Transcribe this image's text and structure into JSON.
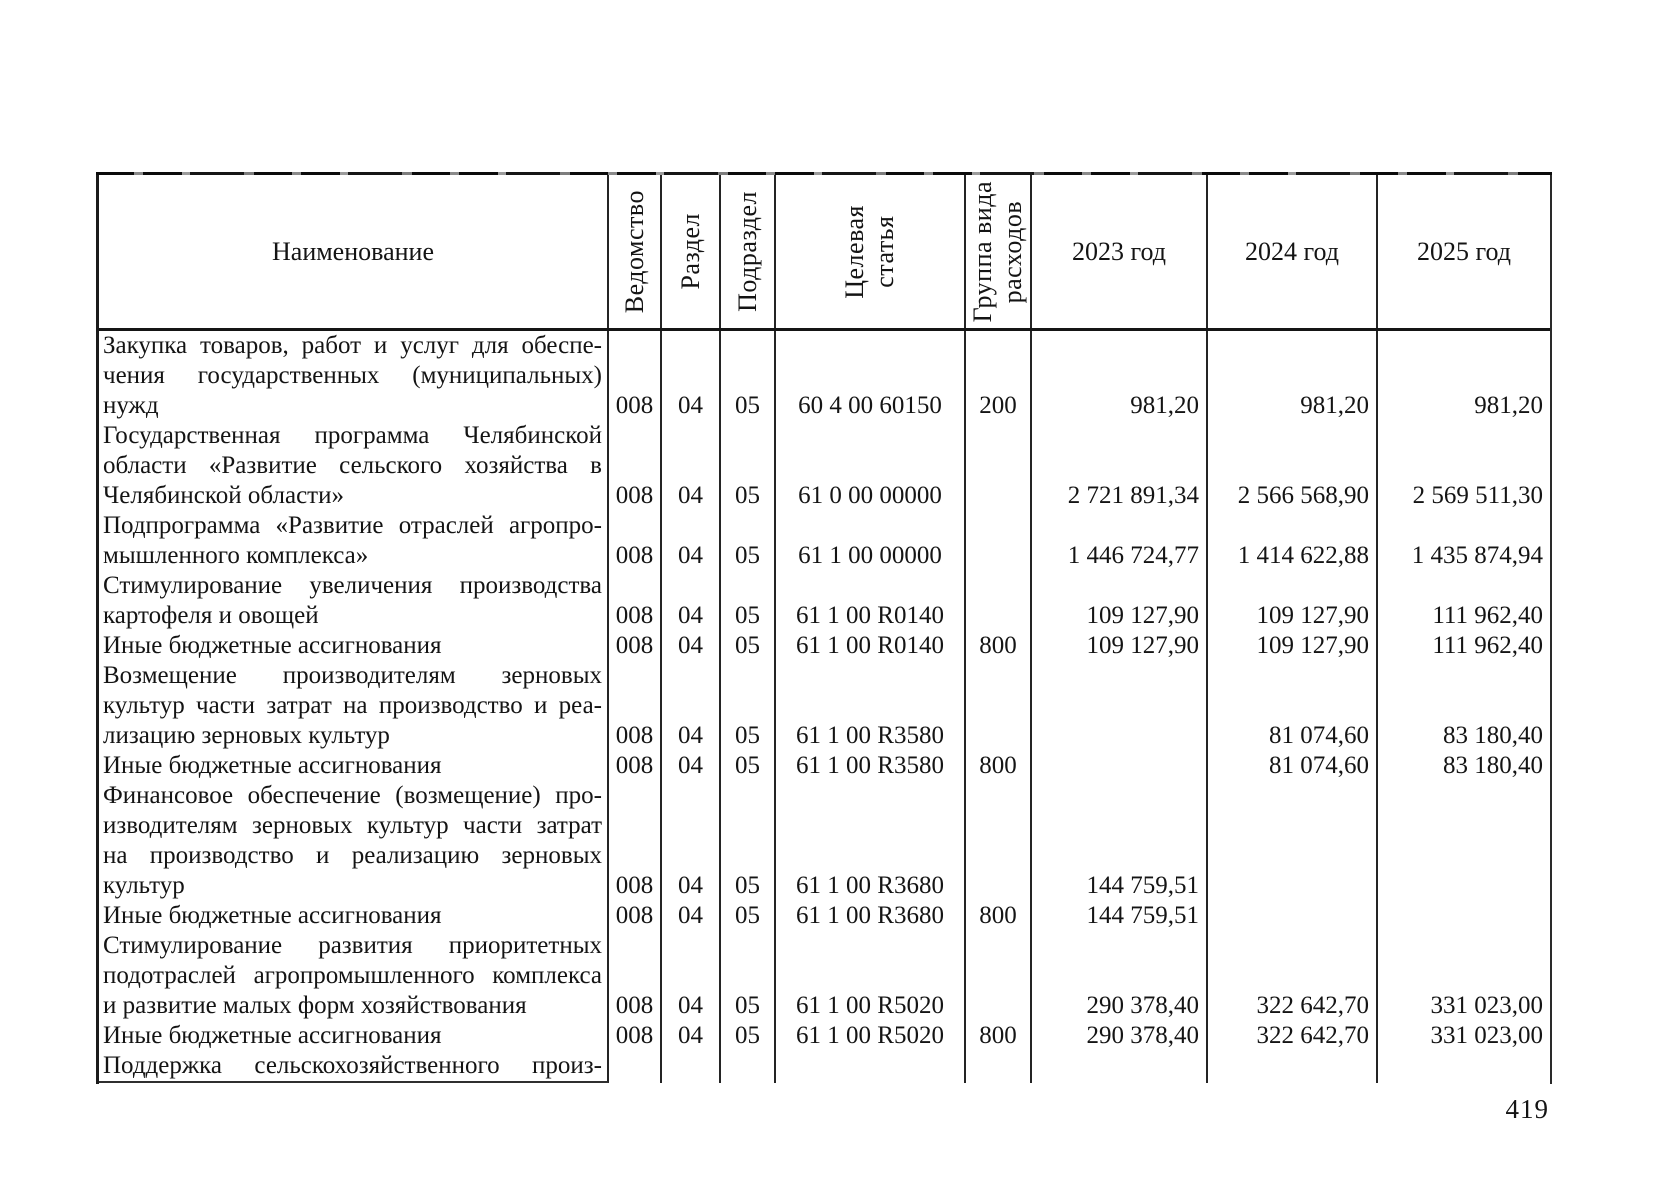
{
  "page_number": "419",
  "table": {
    "headers": {
      "name": "Наименование",
      "vedomstvo": "Ведомство",
      "razdel": "Раздел",
      "podrazdel": "Подраздел",
      "tselevaya": "Целевая\nстатья",
      "gruppa": "Группа вида\nрасходов",
      "y2023": "2023 год",
      "y2024": "2024 год",
      "y2025": "2025 год"
    },
    "rows": [
      {
        "name_lines": [
          "Закупка товаров, работ и услуг для обеспе-",
          "чения государственных (муниципальных)",
          "нужд"
        ],
        "vedomstvo": "008",
        "razdel": "04",
        "podrazdel": "05",
        "tselevaya": "60 4 00 60150",
        "gruppa": "200",
        "y2023": "981,20",
        "y2024": "981,20",
        "y2025": "981,20"
      },
      {
        "name_lines": [
          "Государственная программа Челябинской",
          "области «Развитие сельского хозяйства в",
          "Челябинской области»"
        ],
        "vedomstvo": "008",
        "razdel": "04",
        "podrazdel": "05",
        "tselevaya": "61 0 00 00000",
        "gruppa": "",
        "y2023": "2 721 891,34",
        "y2024": "2 566 568,90",
        "y2025": "2 569 511,30"
      },
      {
        "name_lines": [
          "Подпрограмма «Развитие отраслей агропро-",
          "мышленного комплекса»"
        ],
        "vedomstvo": "008",
        "razdel": "04",
        "podrazdel": "05",
        "tselevaya": "61 1 00 00000",
        "gruppa": "",
        "y2023": "1 446 724,77",
        "y2024": "1 414 622,88",
        "y2025": "1 435 874,94"
      },
      {
        "name_lines": [
          "Стимулирование увеличения производства",
          "картофеля и овощей"
        ],
        "vedomstvo": "008",
        "razdel": "04",
        "podrazdel": "05",
        "tselevaya": "61 1 00 R0140",
        "gruppa": "",
        "y2023": "109 127,90",
        "y2024": "109 127,90",
        "y2025": "111 962,40"
      },
      {
        "name_lines": [
          "Иные бюджетные ассигнования"
        ],
        "vedomstvo": "008",
        "razdel": "04",
        "podrazdel": "05",
        "tselevaya": "61 1 00 R0140",
        "gruppa": "800",
        "y2023": "109 127,90",
        "y2024": "109 127,90",
        "y2025": "111 962,40"
      },
      {
        "name_lines": [
          "Возмещение производителям зерновых",
          "культур части затрат на производство и реа-",
          "лизацию зерновых культур"
        ],
        "vedomstvo": "008",
        "razdel": "04",
        "podrazdel": "05",
        "tselevaya": "61 1 00 R3580",
        "gruppa": "",
        "y2023": "",
        "y2024": "81 074,60",
        "y2025": "83 180,40"
      },
      {
        "name_lines": [
          "Иные бюджетные ассигнования"
        ],
        "vedomstvo": "008",
        "razdel": "04",
        "podrazdel": "05",
        "tselevaya": "61 1 00 R3580",
        "gruppa": "800",
        "y2023": "",
        "y2024": "81 074,60",
        "y2025": "83 180,40"
      },
      {
        "name_lines": [
          "Финансовое обеспечение (возмещение) про-",
          "изводителям зерновых культур части затрат",
          "на производство и реализацию зерновых",
          "культур"
        ],
        "vedomstvo": "008",
        "razdel": "04",
        "podrazdel": "05",
        "tselevaya": "61 1 00 R3680",
        "gruppa": "",
        "y2023": "144 759,51",
        "y2024": "",
        "y2025": ""
      },
      {
        "name_lines": [
          "Иные бюджетные ассигнования"
        ],
        "vedomstvo": "008",
        "razdel": "04",
        "podrazdel": "05",
        "tselevaya": "61 1 00 R3680",
        "gruppa": "800",
        "y2023": "144 759,51",
        "y2024": "",
        "y2025": ""
      },
      {
        "name_lines": [
          "Стимулирование развития приоритетных",
          "подотраслей агропромышленного комплекса",
          "и развитие малых форм хозяйствования"
        ],
        "vedomstvo": "008",
        "razdel": "04",
        "podrazdel": "05",
        "tselevaya": "61 1 00 R5020",
        "gruppa": "",
        "y2023": "290 378,40",
        "y2024": "322 642,70",
        "y2025": "331 023,00"
      },
      {
        "name_lines": [
          "Иные бюджетные ассигнования"
        ],
        "vedomstvo": "008",
        "razdel": "04",
        "podrazdel": "05",
        "tselevaya": "61 1 00 R5020",
        "gruppa": "800",
        "y2023": "290 378,40",
        "y2024": "322 642,70",
        "y2025": "331 023,00"
      },
      {
        "name_lines": [
          "Поддержка сельскохозяйственного произ-"
        ],
        "cut": true,
        "vedomstvo": "",
        "razdel": "",
        "podrazdel": "",
        "tselevaya": "",
        "gruppa": "",
        "y2023": "",
        "y2024": "",
        "y2025": ""
      }
    ]
  }
}
